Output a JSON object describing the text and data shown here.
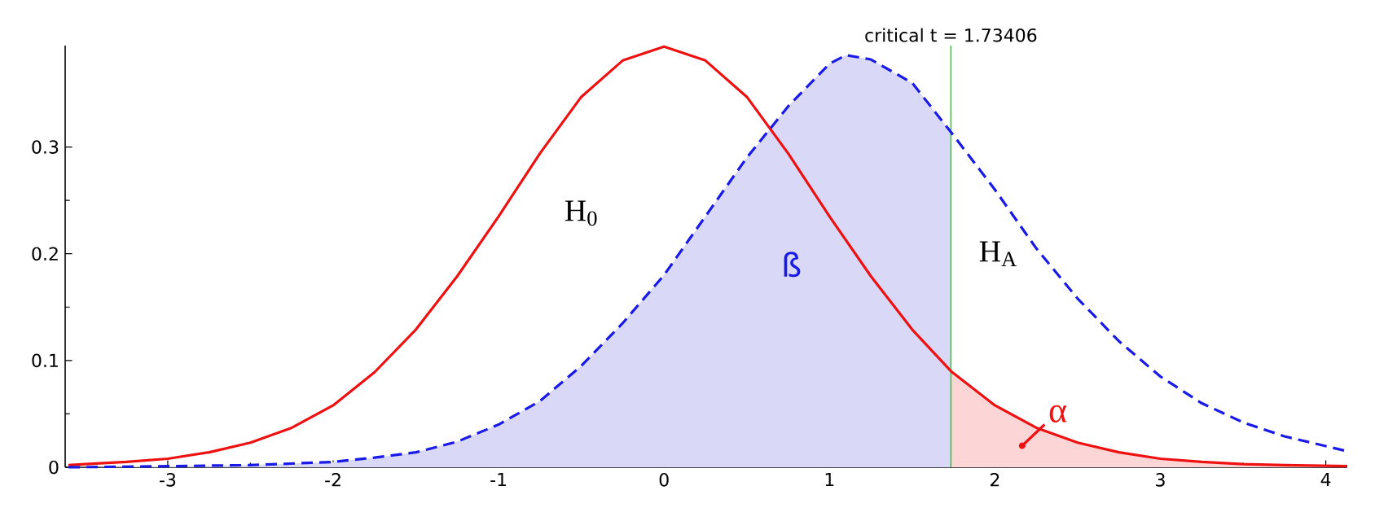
{
  "chart_data": {
    "type": "line",
    "x": [
      -3.6,
      -3.5,
      -3.25,
      -3.0,
      -2.75,
      -2.5,
      -2.25,
      -2.0,
      -1.75,
      -1.5,
      -1.25,
      -1.0,
      -0.75,
      -0.5,
      -0.25,
      0.0,
      0.25,
      0.5,
      0.75,
      1.0,
      1.25,
      1.5,
      1.73406,
      2.0,
      2.25,
      2.5,
      2.75,
      3.0,
      3.25,
      3.5,
      3.75,
      4.13
    ],
    "series": [
      {
        "name": "H$_{0}$",
        "color": "#ee1111",
        "line_style": "solid",
        "values": [
          0.002,
          0.003,
          0.005,
          0.008,
          0.014,
          0.023,
          0.037,
          0.058,
          0.089,
          0.129,
          0.179,
          0.235,
          0.294,
          0.347,
          0.381,
          0.394,
          0.381,
          0.347,
          0.294,
          0.235,
          0.179,
          0.129,
          0.09,
          0.058,
          0.037,
          0.023,
          0.014,
          0.008,
          0.005,
          0.003,
          0.002,
          0.001
        ]
      },
      {
        "name": "H$_{A}$",
        "color": "#1a1ae6",
        "line_style": "dashed",
        "x": [
          -3.6,
          -3.0,
          -2.5,
          -2.0,
          -1.75,
          -1.5,
          -1.25,
          -1.0,
          -0.75,
          -0.5,
          -0.25,
          0.0,
          0.25,
          0.5,
          0.75,
          1.0,
          1.1,
          1.25,
          1.5,
          1.73406,
          2.0,
          2.25,
          2.5,
          2.75,
          3.0,
          3.25,
          3.5,
          3.75,
          4.13
        ],
        "values": [
          0.0,
          0.001,
          0.002,
          0.005,
          0.009,
          0.014,
          0.024,
          0.04,
          0.062,
          0.095,
          0.135,
          0.18,
          0.235,
          0.29,
          0.338,
          0.378,
          0.386,
          0.382,
          0.36,
          0.314,
          0.26,
          0.205,
          0.158,
          0.118,
          0.085,
          0.06,
          0.042,
          0.029,
          0.015
        ]
      },
      {
        "type": "area",
        "color": "#d9d9f7",
        "x": [
          -3.6,
          -3.0,
          -2.5,
          -2.0,
          -1.75,
          -1.5,
          -1.25,
          -1.0,
          -0.75,
          -0.5,
          -0.25,
          0.0,
          0.25,
          0.5,
          0.75,
          1.0,
          1.1,
          1.25,
          1.5,
          1.73406
        ],
        "values": [
          0.0,
          0.001,
          0.002,
          0.005,
          0.009,
          0.014,
          0.024,
          0.04,
          0.062,
          0.095,
          0.135,
          0.18,
          0.235,
          0.29,
          0.338,
          0.378,
          0.386,
          0.382,
          0.36,
          0.314
        ]
      },
      {
        "type": "area",
        "color": "#fcd6d6",
        "x": [
          1.73406,
          2.0,
          2.25,
          2.5,
          2.75,
          3.0,
          3.25,
          3.5,
          3.75,
          4.13
        ],
        "values": [
          0.09,
          0.058,
          0.037,
          0.023,
          0.014,
          0.008,
          0.005,
          0.003,
          0.002,
          0.001
        ]
      }
    ],
    "xlim": [
      -3.62,
      4.13
    ],
    "ylim": [
      0,
      0.395
    ],
    "xticks": [
      -3,
      -2,
      -1,
      0,
      1,
      2,
      3,
      4
    ],
    "yticks": [
      0,
      0.1,
      0.2,
      0.3
    ],
    "ref_lines": [
      {
        "axis": "x",
        "value": 1.73406,
        "label": "critical t = 1.73406",
        "color": "#33cc33"
      }
    ],
    "annotations": [
      "ß",
      "α"
    ],
    "grid": false,
    "marker": "none"
  }
}
